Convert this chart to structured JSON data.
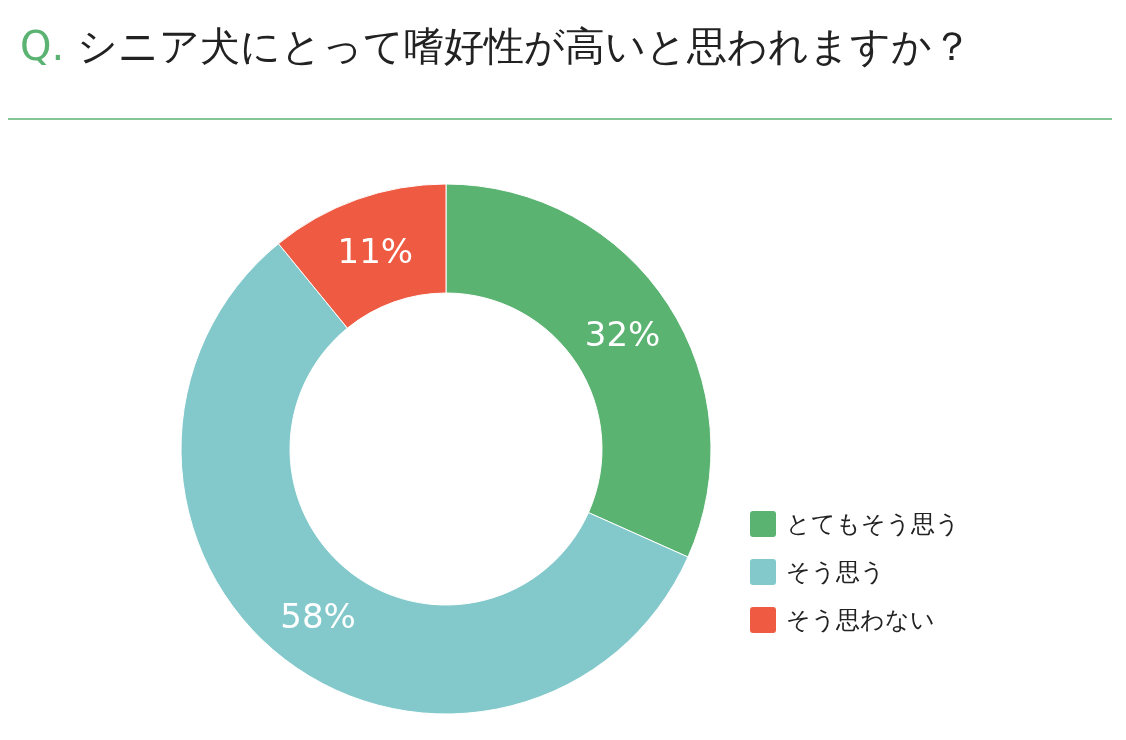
{
  "chart_data": {
    "type": "donut",
    "title": "Q. シニア犬にとって嗜好性が高いと思われますか？",
    "categories": [
      "とてもそう思う",
      "そう思う",
      "そう思わない"
    ],
    "values": [
      32,
      58,
      11
    ],
    "colors": [
      "#5bb372",
      "#83c9cb",
      "#ee5a42"
    ],
    "value_labels": [
      "32%",
      "58%",
      "11%"
    ],
    "legend": "right"
  }
}
